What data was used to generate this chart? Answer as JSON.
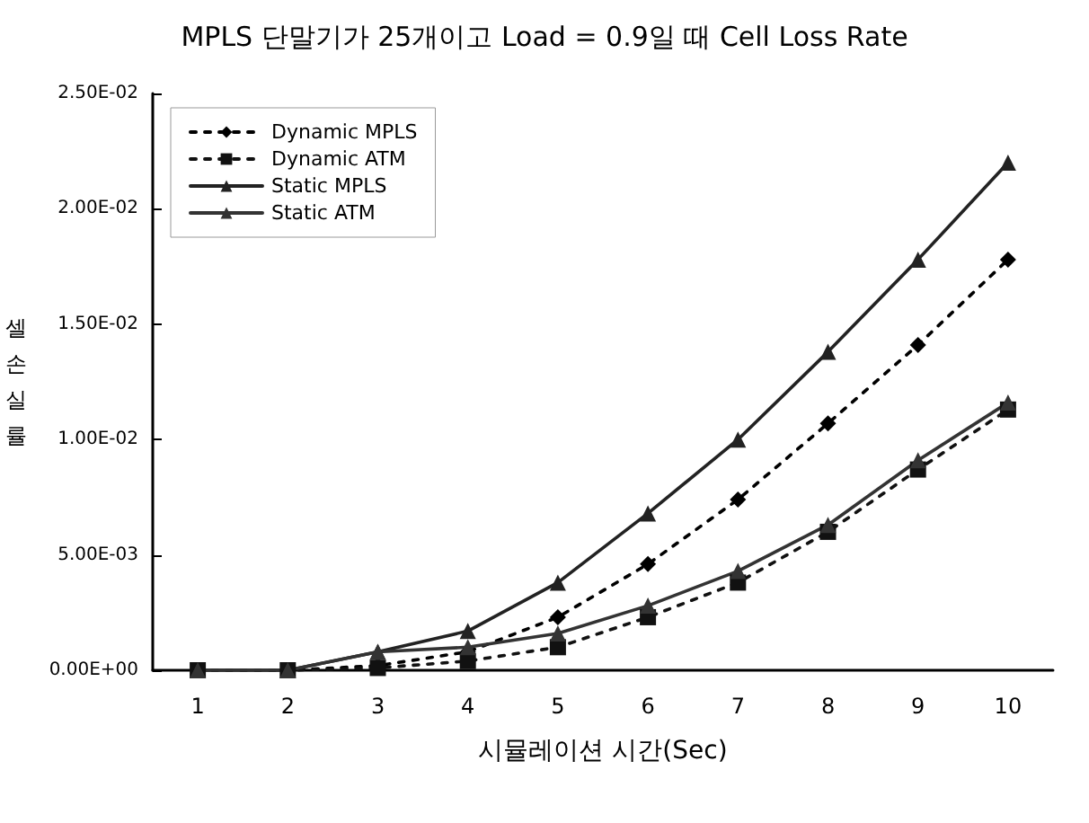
{
  "chart_data": {
    "type": "line",
    "title": "MPLS 단말기가 25개이고 Load = 0.9일 때 Cell Loss Rate",
    "xlabel": "시뮬레이션 시간(Sec)",
    "ylabel": "셀 손 실 률",
    "categories": [
      "1",
      "2",
      "3",
      "4",
      "5",
      "6",
      "7",
      "8",
      "9",
      "10"
    ],
    "series": [
      {
        "name": "Dynamic MPLS",
        "color": "#000000",
        "marker": "diamond",
        "line_style": "dotted",
        "values": [
          0,
          0,
          0.0002,
          0.0008,
          0.0023,
          0.0046,
          0.0074,
          0.0107,
          0.0141,
          0.0178
        ]
      },
      {
        "name": "Dynamic ATM",
        "color": "#111111",
        "marker": "square",
        "line_style": "dotted",
        "values": [
          0,
          0,
          0.0001,
          0.0004,
          0.001,
          0.0023,
          0.0038,
          0.006,
          0.0087,
          0.0113
        ]
      },
      {
        "name": "Static MPLS",
        "color": "#222222",
        "marker": "triangle",
        "line_style": "solid",
        "values": [
          0,
          0,
          0.0008,
          0.0017,
          0.0038,
          0.0068,
          0.01,
          0.0138,
          0.0178,
          0.022
        ]
      },
      {
        "name": "Static ATM",
        "color": "#333333",
        "marker": "triangle",
        "line_style": "solid",
        "values": [
          0,
          0,
          0.0008,
          0.001,
          0.0016,
          0.0028,
          0.0043,
          0.0063,
          0.0091,
          0.0116
        ]
      }
    ],
    "ylim": [
      0,
      0.025
    ],
    "yticks": [
      {
        "value": 0,
        "label": "0.00E+00"
      },
      {
        "value": 0.005,
        "label": "5.00E-03"
      },
      {
        "value": 0.01,
        "label": "1.00E-02"
      },
      {
        "value": 0.015,
        "label": "1.50E-02"
      },
      {
        "value": 0.02,
        "label": "2.00E-02"
      },
      {
        "value": 0.025,
        "label": "2.50E-02"
      }
    ],
    "grid": false,
    "legend": "top left"
  }
}
